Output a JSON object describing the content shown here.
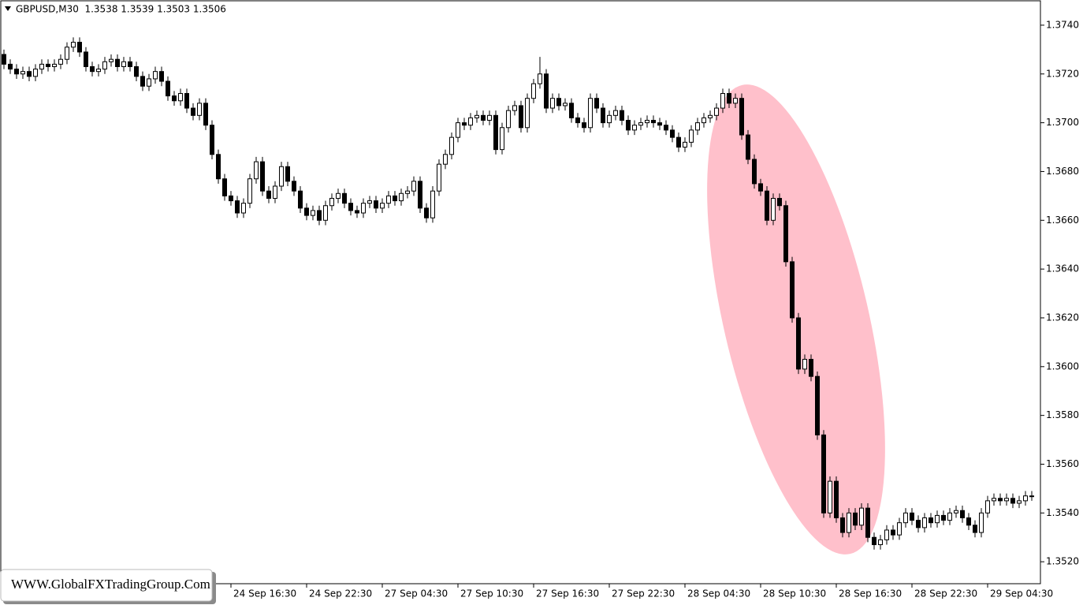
{
  "chart_data": {
    "type": "candlestick",
    "title": "GBPUSD,M30  1.3538 1.3539 1.3503 1.3506",
    "watermark": "WWW.GlobalFXTradingGroup.Com",
    "bull_color": "#ffffff",
    "bear_color": "#000000",
    "highlight_color": "#ffc0cb",
    "ylim": [
      1.3511,
      1.375
    ],
    "yticks": [
      {
        "value": 1.352,
        "label": "1.3520"
      },
      {
        "value": 1.354,
        "label": "1.3540"
      },
      {
        "value": 1.356,
        "label": "1.3560"
      },
      {
        "value": 1.358,
        "label": "1.3580"
      },
      {
        "value": 1.36,
        "label": "1.3600"
      },
      {
        "value": 1.362,
        "label": "1.3620"
      },
      {
        "value": 1.364,
        "label": "1.3640"
      },
      {
        "value": 1.366,
        "label": "1.3660"
      },
      {
        "value": 1.368,
        "label": "1.3680"
      },
      {
        "value": 1.37,
        "label": "1.3700"
      },
      {
        "value": 1.372,
        "label": "1.3720"
      },
      {
        "value": 1.374,
        "label": "1.3740"
      }
    ],
    "xticks": [
      {
        "value": 36,
        "label": "24 Sep 16:30"
      },
      {
        "value": 48,
        "label": "24 Sep 22:30"
      },
      {
        "value": 60,
        "label": "27 Sep 04:30"
      },
      {
        "value": 72,
        "label": "27 Sep 10:30"
      },
      {
        "value": 84,
        "label": "27 Sep 16:30"
      },
      {
        "value": 96,
        "label": "27 Sep 22:30"
      },
      {
        "value": 108,
        "label": "28 Sep 04:30"
      },
      {
        "value": 120,
        "label": "28 Sep 10:30"
      },
      {
        "value": 132,
        "label": "28 Sep 16:30"
      },
      {
        "value": 144,
        "label": "28 Sep 22:30"
      },
      {
        "value": 156,
        "label": "29 Sep 04:30"
      }
    ],
    "open": [
      1.3728,
      1.3724,
      1.3722,
      1.372,
      1.3721,
      1.3719,
      1.3722,
      1.3724,
      1.3723,
      1.3724,
      1.3726,
      1.3731,
      1.3733,
      1.3729,
      1.3723,
      1.3721,
      1.3722,
      1.3725,
      1.3726,
      1.3723,
      1.3725,
      1.3723,
      1.3719,
      1.3715,
      1.3718,
      1.3721,
      1.3717,
      1.3711,
      1.3709,
      1.3712,
      1.3706,
      1.3703,
      1.3708,
      1.3699,
      1.3687,
      1.3677,
      1.367,
      1.3668,
      1.3663,
      1.3667,
      1.3677,
      1.3684,
      1.3672,
      1.3669,
      1.3674,
      1.3682,
      1.3676,
      1.3672,
      1.3665,
      1.3662,
      1.3664,
      1.366,
      1.3666,
      1.3669,
      1.3671,
      1.3667,
      1.3664,
      1.3663,
      1.3667,
      1.3668,
      1.3665,
      1.3667,
      1.367,
      1.3668,
      1.3671,
      1.3672,
      1.3676,
      1.3665,
      1.3661,
      1.3672,
      1.3683,
      1.3687,
      1.3694,
      1.37,
      1.3699,
      1.3702,
      1.3703,
      1.3701,
      1.3703,
      1.3689,
      1.3698,
      1.3705,
      1.3707,
      1.3698,
      1.371,
      1.3716,
      1.372,
      1.3706,
      1.371,
      1.3707,
      1.3708,
      1.3702,
      1.37,
      1.3698,
      1.371,
      1.3706,
      1.37,
      1.3703,
      1.3705,
      1.3701,
      1.3697,
      1.3699,
      1.37,
      1.3701,
      1.37,
      1.3699,
      1.3697,
      1.3694,
      1.369,
      1.3692,
      1.3697,
      1.37,
      1.3702,
      1.3703,
      1.3706,
      1.3712,
      1.3708,
      1.371,
      1.3695,
      1.3685,
      1.3675,
      1.3672,
      1.366,
      1.3669,
      1.3666,
      1.3643,
      1.362,
      1.3599,
      1.3603,
      1.3596,
      1.3572,
      1.354,
      1.3553,
      1.3538,
      1.3532,
      1.354,
      1.3535,
      1.3542,
      1.353,
      1.3527,
      1.3529,
      1.3533,
      1.3531,
      1.3536,
      1.354,
      1.3537,
      1.3534,
      1.3538,
      1.3536,
      1.3539,
      1.3537,
      1.354,
      1.3541,
      1.3538,
      1.3535,
      1.3532,
      1.354,
      1.3545,
      1.3546,
      1.3545,
      1.3546,
      1.3544,
      1.3545,
      1.3547
    ],
    "high": [
      1.373,
      1.3726,
      1.3724,
      1.3723,
      1.3723,
      1.3724,
      1.3726,
      1.3726,
      1.3726,
      1.3728,
      1.3733,
      1.3735,
      1.3735,
      1.3731,
      1.3725,
      1.3724,
      1.3727,
      1.3728,
      1.3728,
      1.3727,
      1.3727,
      1.3725,
      1.3721,
      1.372,
      1.3723,
      1.3723,
      1.3719,
      1.3713,
      1.3714,
      1.3714,
      1.3708,
      1.371,
      1.371,
      1.3701,
      1.3689,
      1.3679,
      1.3672,
      1.367,
      1.3669,
      1.3679,
      1.3686,
      1.3686,
      1.3674,
      1.3676,
      1.3684,
      1.3684,
      1.3678,
      1.3674,
      1.3667,
      1.3666,
      1.3666,
      1.3668,
      1.3671,
      1.3673,
      1.3673,
      1.3669,
      1.3666,
      1.3669,
      1.367,
      1.367,
      1.3669,
      1.3672,
      1.3672,
      1.3673,
      1.3674,
      1.3678,
      1.3678,
      1.3667,
      1.3674,
      1.3685,
      1.3689,
      1.3696,
      1.3702,
      1.3702,
      1.3704,
      1.3705,
      1.3705,
      1.3705,
      1.3705,
      1.37,
      1.3707,
      1.3709,
      1.3709,
      1.3712,
      1.3718,
      1.3727,
      1.3722,
      1.3712,
      1.3712,
      1.371,
      1.371,
      1.3704,
      1.3702,
      1.3712,
      1.3712,
      1.3708,
      1.3705,
      1.3707,
      1.3707,
      1.3703,
      1.3701,
      1.3702,
      1.3703,
      1.3703,
      1.3702,
      1.3701,
      1.3699,
      1.3696,
      1.3694,
      1.3699,
      1.3702,
      1.3704,
      1.3705,
      1.3708,
      1.3714,
      1.3714,
      1.3712,
      1.3712,
      1.3697,
      1.3687,
      1.3677,
      1.3674,
      1.3671,
      1.3671,
      1.3668,
      1.3645,
      1.3622,
      1.3605,
      1.3605,
      1.3598,
      1.3574,
      1.3555,
      1.3555,
      1.354,
      1.3542,
      1.3542,
      1.3544,
      1.3544,
      1.3532,
      1.3531,
      1.3535,
      1.3535,
      1.3538,
      1.3542,
      1.3542,
      1.3539,
      1.354,
      1.354,
      1.3541,
      1.3541,
      1.3542,
      1.3543,
      1.3543,
      1.354,
      1.3537,
      1.3542,
      1.3547,
      1.3548,
      1.3548,
      1.3548,
      1.3548,
      1.3547,
      1.3549,
      1.3549
    ],
    "low": [
      1.3722,
      1.372,
      1.3718,
      1.3718,
      1.3717,
      1.3717,
      1.372,
      1.3721,
      1.3721,
      1.3722,
      1.3724,
      1.3729,
      1.3727,
      1.3721,
      1.3719,
      1.3719,
      1.372,
      1.3723,
      1.3721,
      1.3721,
      1.3721,
      1.3717,
      1.3713,
      1.3713,
      1.3716,
      1.3715,
      1.3709,
      1.3707,
      1.3707,
      1.3704,
      1.3701,
      1.3701,
      1.3697,
      1.3685,
      1.3675,
      1.3668,
      1.3666,
      1.3661,
      1.3661,
      1.3665,
      1.3675,
      1.367,
      1.3667,
      1.3667,
      1.3672,
      1.3674,
      1.367,
      1.3663,
      1.366,
      1.366,
      1.3658,
      1.3658,
      1.3664,
      1.3667,
      1.3665,
      1.3662,
      1.3661,
      1.3661,
      1.3665,
      1.3663,
      1.3663,
      1.3665,
      1.3666,
      1.3666,
      1.3669,
      1.367,
      1.3663,
      1.3659,
      1.3659,
      1.367,
      1.3681,
      1.3685,
      1.3692,
      1.3697,
      1.3697,
      1.37,
      1.3699,
      1.3699,
      1.3687,
      1.3687,
      1.3696,
      1.3703,
      1.3696,
      1.3696,
      1.3708,
      1.3714,
      1.3704,
      1.3704,
      1.3705,
      1.3705,
      1.37,
      1.3698,
      1.3696,
      1.3696,
      1.3704,
      1.3698,
      1.3698,
      1.3701,
      1.3699,
      1.3695,
      1.3695,
      1.3697,
      1.3698,
      1.3698,
      1.3697,
      1.3695,
      1.3692,
      1.3688,
      1.3688,
      1.369,
      1.3695,
      1.3698,
      1.37,
      1.3701,
      1.3704,
      1.3706,
      1.3706,
      1.3693,
      1.3683,
      1.3673,
      1.367,
      1.3658,
      1.3658,
      1.3664,
      1.3641,
      1.3618,
      1.3597,
      1.3597,
      1.3594,
      1.357,
      1.3538,
      1.3538,
      1.3536,
      1.353,
      1.353,
      1.3533,
      1.3533,
      1.3528,
      1.3525,
      1.3525,
      1.3527,
      1.3529,
      1.3529,
      1.3534,
      1.3535,
      1.3532,
      1.3532,
      1.3534,
      1.3534,
      1.3535,
      1.3535,
      1.3538,
      1.3536,
      1.3533,
      1.353,
      1.353,
      1.3538,
      1.3543,
      1.3543,
      1.3543,
      1.3542,
      1.3542,
      1.3543,
      1.3545
    ],
    "close": [
      1.3724,
      1.3722,
      1.372,
      1.3721,
      1.3719,
      1.3722,
      1.3724,
      1.3723,
      1.3724,
      1.3726,
      1.3731,
      1.3733,
      1.3729,
      1.3723,
      1.3721,
      1.3722,
      1.3725,
      1.3726,
      1.3723,
      1.3725,
      1.3723,
      1.3719,
      1.3715,
      1.3718,
      1.3721,
      1.3717,
      1.3711,
      1.3709,
      1.3712,
      1.3706,
      1.3703,
      1.3708,
      1.3699,
      1.3687,
      1.3677,
      1.367,
      1.3668,
      1.3663,
      1.3667,
      1.3677,
      1.3684,
      1.3672,
      1.3669,
      1.3674,
      1.3682,
      1.3676,
      1.3672,
      1.3665,
      1.3662,
      1.3664,
      1.366,
      1.3666,
      1.3669,
      1.3671,
      1.3667,
      1.3664,
      1.3663,
      1.3667,
      1.3668,
      1.3665,
      1.3667,
      1.367,
      1.3668,
      1.3671,
      1.3672,
      1.3676,
      1.3665,
      1.3661,
      1.3672,
      1.3683,
      1.3687,
      1.3694,
      1.37,
      1.3699,
      1.3702,
      1.3703,
      1.3701,
      1.3703,
      1.3689,
      1.3698,
      1.3705,
      1.3707,
      1.3698,
      1.371,
      1.3716,
      1.372,
      1.3706,
      1.371,
      1.3707,
      1.3708,
      1.3702,
      1.37,
      1.3698,
      1.371,
      1.3706,
      1.37,
      1.3703,
      1.3705,
      1.3701,
      1.3697,
      1.3699,
      1.37,
      1.3701,
      1.37,
      1.3699,
      1.3697,
      1.3694,
      1.369,
      1.3692,
      1.3697,
      1.37,
      1.3702,
      1.3703,
      1.3706,
      1.3712,
      1.3708,
      1.371,
      1.3695,
      1.3685,
      1.3675,
      1.3672,
      1.366,
      1.3669,
      1.3666,
      1.3643,
      1.362,
      1.3599,
      1.3603,
      1.3596,
      1.3572,
      1.354,
      1.3553,
      1.3538,
      1.3532,
      1.354,
      1.3535,
      1.3542,
      1.353,
      1.3527,
      1.3529,
      1.3533,
      1.3531,
      1.3536,
      1.354,
      1.3537,
      1.3534,
      1.3538,
      1.3536,
      1.3539,
      1.3537,
      1.354,
      1.3541,
      1.3538,
      1.3535,
      1.3532,
      1.354,
      1.3545,
      1.3546,
      1.3545,
      1.3546,
      1.3544,
      1.3545,
      1.3547,
      1.3547
    ]
  }
}
